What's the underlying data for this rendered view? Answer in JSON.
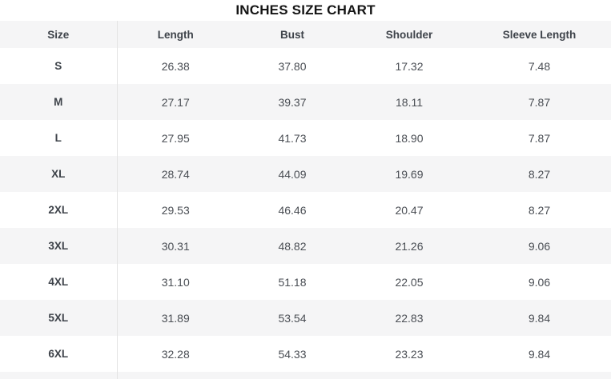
{
  "title": "INCHES SIZE CHART",
  "colors": {
    "page_bg": "#ffffff",
    "title_color": "#141414",
    "header_bg": "#f5f5f6",
    "header_text": "#3e434a",
    "row_bg": "#ffffff",
    "row_alt_bg": "#f5f5f6",
    "cell_text": "#4a4e54",
    "divider": "#e4e4e4"
  },
  "table": {
    "columns": [
      "Size",
      "Length",
      "Bust",
      "Shoulder",
      "Sleeve Length"
    ],
    "rows": [
      {
        "size": "S",
        "values": [
          "26.38",
          "37.80",
          "17.32",
          "7.48"
        ]
      },
      {
        "size": "M",
        "values": [
          "27.17",
          "39.37",
          "18.11",
          "7.87"
        ]
      },
      {
        "size": "L",
        "values": [
          "27.95",
          "41.73",
          "18.90",
          "7.87"
        ]
      },
      {
        "size": "XL",
        "values": [
          "28.74",
          "44.09",
          "19.69",
          "8.27"
        ]
      },
      {
        "size": "2XL",
        "values": [
          "29.53",
          "46.46",
          "20.47",
          "8.27"
        ]
      },
      {
        "size": "3XL",
        "values": [
          "30.31",
          "48.82",
          "21.26",
          "9.06"
        ]
      },
      {
        "size": "4XL",
        "values": [
          "31.10",
          "51.18",
          "22.05",
          "9.06"
        ]
      },
      {
        "size": "5XL",
        "values": [
          "31.89",
          "53.54",
          "22.83",
          "9.84"
        ]
      },
      {
        "size": "6XL",
        "values": [
          "32.28",
          "54.33",
          "23.23",
          "9.84"
        ]
      }
    ]
  }
}
